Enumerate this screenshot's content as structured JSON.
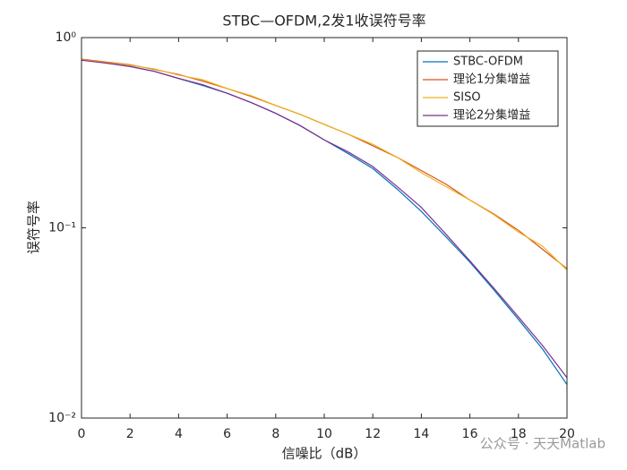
{
  "chart_data": {
    "type": "line",
    "title": "STBC—OFDM,2发1收误符号率",
    "xlabel": "信噪比（dB）",
    "ylabel": "误符号率",
    "annotation": "公众号 · 天天Matlab",
    "x": [
      0,
      1,
      2,
      3,
      4,
      5,
      6,
      7,
      8,
      9,
      10,
      11,
      12,
      13,
      14,
      15,
      16,
      17,
      18,
      19,
      20
    ],
    "series": [
      {
        "name": "STBC-OFDM",
        "color": "#0072bd",
        "values": [
          0.765,
          0.735,
          0.705,
          0.665,
          0.61,
          0.56,
          0.51,
          0.455,
          0.4,
          0.345,
          0.29,
          0.245,
          0.205,
          0.16,
          0.122,
          0.09,
          0.066,
          0.047,
          0.033,
          0.023,
          0.015
        ]
      },
      {
        "name": "理论1分集增益",
        "color": "#d95319",
        "values": [
          0.77,
          0.745,
          0.72,
          0.68,
          0.64,
          0.59,
          0.54,
          0.49,
          0.44,
          0.395,
          0.35,
          0.31,
          0.27,
          0.235,
          0.2,
          0.17,
          0.14,
          0.118,
          0.097,
          0.077,
          0.061
        ]
      },
      {
        "name": "SISO",
        "color": "#edb120",
        "values": [
          0.765,
          0.74,
          0.715,
          0.685,
          0.635,
          0.6,
          0.54,
          0.495,
          0.44,
          0.395,
          0.35,
          0.31,
          0.275,
          0.235,
          0.195,
          0.165,
          0.14,
          0.117,
          0.095,
          0.08,
          0.06
        ]
      },
      {
        "name": "理论2分集增益",
        "color": "#7e2f8e",
        "values": [
          0.76,
          0.735,
          0.705,
          0.665,
          0.61,
          0.565,
          0.51,
          0.455,
          0.4,
          0.345,
          0.29,
          0.25,
          0.21,
          0.165,
          0.128,
          0.093,
          0.067,
          0.048,
          0.034,
          0.024,
          0.0163
        ]
      }
    ],
    "xlim": [
      0,
      20
    ],
    "xticks": [
      0,
      2,
      4,
      6,
      8,
      10,
      12,
      14,
      16,
      18,
      20
    ],
    "ylim": [
      0.01,
      1
    ],
    "ylog": true,
    "yticks": [
      {
        "value": 0.01,
        "label": "10⁻²"
      },
      {
        "value": 0.1,
        "label": "10⁻¹"
      },
      {
        "value": 1,
        "label": "10⁰"
      }
    ],
    "legend": "northeast"
  }
}
